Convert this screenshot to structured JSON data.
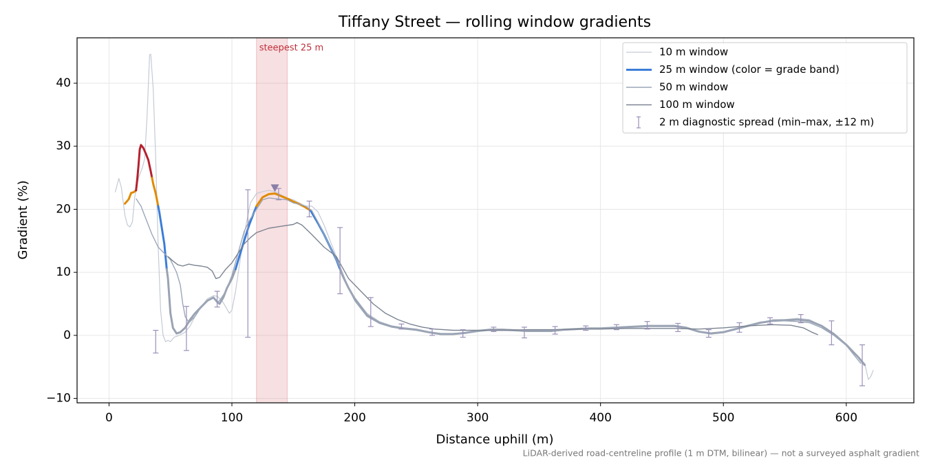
{
  "chart_data": {
    "type": "line",
    "title": "Tiffany Street — rolling window gradients",
    "x_label": "Distance uphill (m)",
    "y_label": "Gradient (%)",
    "footnote": "LiDAR-derived road-centreline profile (1 m DTM, bilinear) — not a surveyed asphalt gradient",
    "xlim": [
      -26,
      655
    ],
    "ylim": [
      -10.7,
      47.2
    ],
    "xticks": [
      0,
      100,
      200,
      300,
      400,
      500,
      600
    ],
    "yticks": [
      {
        "value": -10,
        "label": "−10"
      },
      0,
      10,
      20,
      30,
      40
    ],
    "grid": true,
    "legend": "upper right",
    "highlight": {
      "label": "steepest 25 m",
      "x": [
        120,
        145
      ],
      "color": "#d9707a",
      "marker_x": 135,
      "marker_y": 23.4,
      "marker_color": "#8a7fa8"
    },
    "series": [
      {
        "name": "10 m window",
        "color": "#c3cad5",
        "width": 1.2,
        "x": [
          5,
          8,
          10,
          13,
          15,
          17,
          19,
          21,
          24,
          27,
          29,
          31,
          33,
          34,
          36,
          38,
          40,
          42,
          44,
          46,
          48,
          50,
          53,
          57,
          62,
          66,
          70,
          75,
          80,
          85,
          88,
          92,
          95,
          98,
          100,
          103,
          106,
          110,
          115,
          120,
          125,
          130,
          135,
          140,
          145,
          150,
          155,
          160,
          165,
          170,
          175,
          180,
          185,
          190,
          195,
          200,
          210,
          220,
          230,
          240,
          250,
          260,
          270,
          280,
          290,
          300,
          310,
          320,
          330,
          340,
          350,
          360,
          370,
          380,
          390,
          400,
          410,
          420,
          430,
          440,
          450,
          460,
          470,
          480,
          490,
          500,
          510,
          520,
          530,
          540,
          550,
          560,
          570,
          580,
          590,
          600,
          610,
          615,
          618,
          620,
          622
        ],
        "values": [
          22.7,
          24.9,
          23.5,
          19,
          17.5,
          17.2,
          18,
          22,
          25,
          26.5,
          28,
          35,
          44.5,
          44.6,
          39,
          28,
          14,
          4,
          0,
          -1,
          -0.8,
          -1,
          -0.3,
          0,
          0.5,
          1.5,
          3,
          4.5,
          5.8,
          6.3,
          6.2,
          5.5,
          4.5,
          3.5,
          4,
          7,
          11,
          16,
          21,
          22.5,
          22.8,
          23,
          22.8,
          22.3,
          21.8,
          21.5,
          21,
          20.5,
          20.5,
          19.6,
          17.5,
          15,
          12.5,
          10,
          7.5,
          6,
          3.5,
          2.2,
          1.5,
          1.2,
          1,
          0.6,
          0.3,
          0.2,
          0.3,
          0.6,
          1,
          1,
          0.9,
          0.8,
          0.6,
          0.7,
          0.9,
          1,
          1.1,
          1.1,
          1.2,
          1.3,
          1.4,
          1.6,
          1.5,
          1.6,
          1.3,
          0.6,
          0.2,
          0.5,
          0.9,
          1.4,
          2,
          2.5,
          2.5,
          2.7,
          2.5,
          1.5,
          0.3,
          -1.5,
          -3.5,
          -4.5,
          -7,
          -6.5,
          -5.5
        ]
      },
      {
        "name": "25 m window (color = grade band)",
        "color": "#3b7dd8",
        "width": 3,
        "x": [
          13,
          16,
          18,
          20,
          22,
          23,
          24,
          25,
          26,
          28,
          30,
          32,
          34,
          35,
          36,
          38,
          40,
          41,
          43,
          45,
          47,
          48,
          50,
          52,
          55,
          58,
          62,
          66,
          70,
          75,
          80,
          85,
          88,
          90,
          93,
          96,
          100,
          103,
          106,
          110,
          114,
          118,
          120,
          125,
          130,
          135,
          140,
          145,
          150,
          155,
          160,
          164,
          170,
          175,
          180,
          185,
          188,
          190,
          195,
          200,
          210,
          220,
          230,
          240,
          250,
          260,
          270,
          280,
          290,
          300,
          310,
          320,
          330,
          340,
          350,
          360,
          370,
          380,
          390,
          400,
          410,
          420,
          430,
          440,
          450,
          460,
          470,
          480,
          490,
          500,
          510,
          520,
          530,
          540,
          550,
          560,
          570,
          580,
          590,
          600,
          610,
          615
        ],
        "values": [
          20.9,
          21.6,
          22.6,
          22.7,
          23,
          24.8,
          27,
          29.5,
          30.2,
          29.7,
          28.8,
          27.8,
          26,
          25,
          24,
          22.5,
          20.5,
          19.5,
          17,
          14.5,
          10.5,
          9,
          3.5,
          1.2,
          0.3,
          0.5,
          1.2,
          2.5,
          3.5,
          4.5,
          5.5,
          6,
          5.3,
          5,
          6,
          7.5,
          9,
          10.5,
          12.5,
          15,
          17.5,
          19.5,
          20.5,
          21.9,
          22.4,
          22.5,
          22.1,
          21.7,
          21.2,
          20.8,
          20.3,
          19.8,
          17.8,
          16,
          14,
          12,
          10.5,
          9.5,
          7.5,
          5.8,
          3.2,
          2,
          1.4,
          1.1,
          0.9,
          0.5,
          0.2,
          0.2,
          0.4,
          0.7,
          0.9,
          0.9,
          0.8,
          0.7,
          0.7,
          0.7,
          0.9,
          1,
          1.1,
          1.1,
          1.2,
          1.3,
          1.4,
          1.5,
          1.5,
          1.5,
          1.2,
          0.6,
          0.3,
          0.5,
          1,
          1.5,
          2,
          2.3,
          2.4,
          2.5,
          2.3,
          1.5,
          0.2,
          -1.5,
          -3.5,
          -4.7
        ],
        "point_colors": [
          "#e08a00",
          "#e08a00",
          "#e08a00",
          "#e08a00",
          "#b5202e",
          "#b5202e",
          "#b5202e",
          "#b5202e",
          "#b5202e",
          "#b5202e",
          "#b5202e",
          "#b5202e",
          "#b5202e",
          "#e08a00",
          "#e08a00",
          "#e08a00",
          "#3b7dd8",
          "#3b7dd8",
          "#3b7dd8",
          "#3b7dd8",
          "#9aa3b2",
          "#9aa3b2",
          "#9aa3b2",
          "#9aa3b2",
          "#9aa3b2",
          "#9aa3b2",
          "#9aa3b2",
          "#9aa3b2",
          "#9aa3b2",
          "#9aa3b2",
          "#9aa3b2",
          "#9aa3b2",
          "#9aa3b2",
          "#9aa3b2",
          "#9aa3b2",
          "#9aa3b2",
          "#9aa3b2",
          "#3b7dd8",
          "#3b7dd8",
          "#3b7dd8",
          "#3b7dd8",
          "#3b7dd8",
          "#e08a00",
          "#e08a00",
          "#e08a00",
          "#e08a00",
          "#e08a00",
          "#e08a00",
          "#e08a00",
          "#e08a00",
          "#e08a00",
          "#3b7dd8",
          "#3b7dd8",
          "#3b7dd8",
          "#3b7dd8",
          "#3b7dd8",
          "#9aa3b2",
          "#9aa3b2",
          "#9aa3b2",
          "#9aa3b2",
          "#9aa3b2",
          "#9aa3b2",
          "#9aa3b2",
          "#9aa3b2",
          "#9aa3b2",
          "#9aa3b2",
          "#9aa3b2",
          "#9aa3b2",
          "#9aa3b2",
          "#9aa3b2",
          "#9aa3b2",
          "#9aa3b2",
          "#9aa3b2",
          "#9aa3b2",
          "#9aa3b2",
          "#9aa3b2",
          "#9aa3b2",
          "#9aa3b2",
          "#9aa3b2",
          "#9aa3b2",
          "#9aa3b2",
          "#9aa3b2",
          "#9aa3b2",
          "#9aa3b2",
          "#9aa3b2",
          "#9aa3b2",
          "#9aa3b2",
          "#9aa3b2",
          "#9aa3b2",
          "#9aa3b2",
          "#9aa3b2",
          "#9aa3b2",
          "#9aa3b2",
          "#9aa3b2",
          "#9aa3b2",
          "#9aa3b2",
          "#9aa3b2",
          "#9aa3b2",
          "#9aa3b2",
          "#9aa3b2",
          "#9aa3b2",
          "#9aa3b2"
        ]
      },
      {
        "name": "50 m window",
        "color": "#9ba6b8",
        "width": 1.4,
        "x": [
          22,
          26,
          30,
          35,
          40,
          45,
          50,
          55,
          58,
          60,
          62,
          65,
          70,
          75,
          80,
          85,
          88,
          90,
          95,
          100,
          105,
          110,
          115,
          120,
          125,
          130,
          135,
          140,
          145,
          150,
          155,
          160,
          165,
          170,
          175,
          180,
          185,
          190,
          195,
          200,
          210,
          220,
          230,
          240,
          250,
          260,
          270,
          280,
          290,
          300,
          310,
          320,
          330,
          340,
          350,
          360,
          370,
          380,
          390,
          400,
          410,
          420,
          430,
          440,
          450,
          460,
          470,
          480,
          490,
          500,
          510,
          520,
          530,
          540,
          550,
          560,
          570,
          580,
          590,
          600,
          612
        ],
        "values": [
          21.7,
          20.5,
          18.5,
          16,
          14,
          13,
          12,
          10,
          8,
          5,
          3,
          2,
          3,
          4.5,
          5.5,
          6,
          5.3,
          5.5,
          7,
          9.5,
          13,
          16.5,
          18.5,
          20,
          21.5,
          21.8,
          21.7,
          21.6,
          21.5,
          21,
          20.8,
          20.5,
          19.8,
          18,
          16,
          14,
          12,
          9.8,
          7.5,
          5.5,
          3,
          1.9,
          1.3,
          1,
          0.8,
          0.5,
          0.3,
          0.3,
          0.4,
          0.7,
          0.8,
          0.8,
          0.8,
          0.8,
          0.8,
          0.8,
          0.9,
          1,
          1.1,
          1.1,
          1.2,
          1.3,
          1.3,
          1.4,
          1.4,
          1.4,
          1.1,
          0.6,
          0.4,
          0.6,
          1.1,
          1.6,
          2.1,
          2.3,
          2.3,
          2.2,
          2,
          1.2,
          0,
          -1.6,
          -4.5
        ]
      },
      {
        "name": "100 m window",
        "color": "#7b8391",
        "width": 1.4,
        "x": [
          48,
          52,
          56,
          60,
          65,
          70,
          75,
          80,
          84,
          87,
          90,
          95,
          100,
          105,
          110,
          115,
          120,
          130,
          140,
          150,
          153,
          157,
          165,
          175,
          185,
          195,
          205,
          215,
          225,
          235,
          245,
          255,
          265,
          280,
          300,
          320,
          340,
          360,
          380,
          400,
          420,
          440,
          460,
          480,
          500,
          520,
          540,
          555,
          565,
          572,
          577
        ],
        "values": [
          12.5,
          11.8,
          11.2,
          11,
          11.3,
          11.1,
          11,
          10.8,
          10.2,
          9,
          9.2,
          10.5,
          11.5,
          13,
          14.5,
          15.5,
          16.3,
          17,
          17.3,
          17.6,
          17.9,
          17.5,
          16,
          14,
          12.5,
          9,
          7,
          5,
          3.5,
          2.5,
          1.8,
          1.3,
          1,
          0.8,
          0.8,
          0.8,
          0.9,
          0.9,
          1,
          1,
          1.1,
          1.1,
          1.1,
          1,
          1.2,
          1.5,
          1.7,
          1.6,
          1.2,
          0.5,
          0.1
        ]
      }
    ],
    "error_bars": {
      "name": "2 m diagnostic spread (min–max, ±12 m)",
      "color": "#9a8fb8",
      "x": [
        38,
        63,
        88,
        113,
        138,
        163,
        188,
        213,
        238,
        263,
        288,
        313,
        338,
        363,
        388,
        413,
        438,
        463,
        488,
        513,
        538,
        563,
        588,
        613
      ],
      "low": [
        -2.8,
        -2.4,
        4.5,
        -0.3,
        21.5,
        18.8,
        6.6,
        1.4,
        1,
        0,
        -0.3,
        0.6,
        -0.4,
        0.2,
        0.8,
        0.9,
        1,
        0.6,
        -0.3,
        0.5,
        1.8,
        2,
        -1.5,
        -8
      ],
      "high": [
        0.8,
        4.6,
        7,
        23.1,
        23.3,
        21.3,
        17.1,
        6,
        1.8,
        1,
        0.9,
        1.3,
        1.3,
        1.4,
        1.5,
        1.7,
        2.2,
        1.9,
        0.9,
        2,
        2.8,
        3.3,
        2.3,
        -1.5
      ]
    }
  }
}
